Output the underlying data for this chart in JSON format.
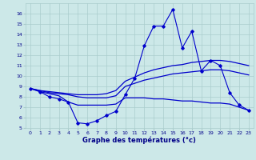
{
  "title": "Graphe des températures (°c)",
  "background_color": "#cce8e8",
  "grid_color": "#aacccc",
  "line_color": "#0000cc",
  "xlim": [
    -0.5,
    23.5
  ],
  "ylim": [
    5,
    17
  ],
  "yticks": [
    5,
    6,
    7,
    8,
    9,
    10,
    11,
    12,
    13,
    14,
    15,
    16
  ],
  "xticks": [
    0,
    1,
    2,
    3,
    4,
    5,
    6,
    7,
    8,
    9,
    10,
    11,
    12,
    13,
    14,
    15,
    16,
    17,
    18,
    19,
    20,
    21,
    22,
    23
  ],
  "line_jagged": [
    8.8,
    8.5,
    8.0,
    7.8,
    7.5,
    5.5,
    5.4,
    5.7,
    6.2,
    6.6,
    8.2,
    9.8,
    12.9,
    14.8,
    14.8,
    16.4,
    12.7,
    14.3,
    10.5,
    11.5,
    11.0,
    8.4,
    7.2,
    6.7
  ],
  "line_upper": [
    8.8,
    8.6,
    8.5,
    8.4,
    8.3,
    8.2,
    8.2,
    8.2,
    8.3,
    8.6,
    9.5,
    9.9,
    10.3,
    10.6,
    10.8,
    11.0,
    11.1,
    11.3,
    11.4,
    11.5,
    11.5,
    11.4,
    11.2,
    11.0
  ],
  "line_middle": [
    8.8,
    8.6,
    8.4,
    8.3,
    8.2,
    8.0,
    7.9,
    7.9,
    7.9,
    8.1,
    9.0,
    9.3,
    9.6,
    9.8,
    10.0,
    10.2,
    10.3,
    10.4,
    10.5,
    10.6,
    10.6,
    10.5,
    10.3,
    10.1
  ],
  "line_lower": [
    8.8,
    8.5,
    8.3,
    8.1,
    7.5,
    7.2,
    7.2,
    7.2,
    7.2,
    7.3,
    7.9,
    7.9,
    7.9,
    7.8,
    7.8,
    7.7,
    7.6,
    7.6,
    7.5,
    7.4,
    7.4,
    7.3,
    7.0,
    6.7
  ]
}
